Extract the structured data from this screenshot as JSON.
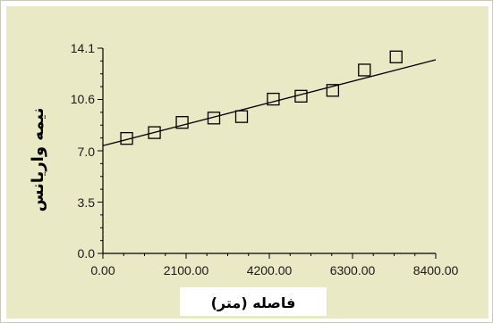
{
  "chart_data": {
    "type": "scatter",
    "xlabel": "فاصله (متر)",
    "ylabel": "نیمه واریانس",
    "xlim": [
      0,
      8400
    ],
    "ylim": [
      0,
      14.1
    ],
    "x_ticks": [
      0,
      2100,
      4200,
      6300,
      8400
    ],
    "y_ticks": [
      0,
      3.5,
      7.0,
      10.6,
      14.1
    ],
    "x_tick_labels": [
      "0.00",
      "2100.00",
      "4200.00",
      "6300.00",
      "8400.00"
    ],
    "y_tick_labels": [
      "0.0",
      "3.5",
      "7.0",
      "10.6",
      "14.1"
    ],
    "series": [
      {
        "marker": "open-square",
        "x": [
          600,
          1300,
          2000,
          2800,
          3500,
          4300,
          5000,
          5800,
          6600,
          7400
        ],
        "y": [
          7.9,
          8.3,
          9.0,
          9.3,
          9.4,
          10.6,
          10.8,
          11.2,
          12.6,
          13.5
        ]
      }
    ],
    "trendline": {
      "x": [
        0,
        8400
      ],
      "y": [
        7.4,
        13.3
      ]
    },
    "grid": false,
    "legend": "none"
  }
}
